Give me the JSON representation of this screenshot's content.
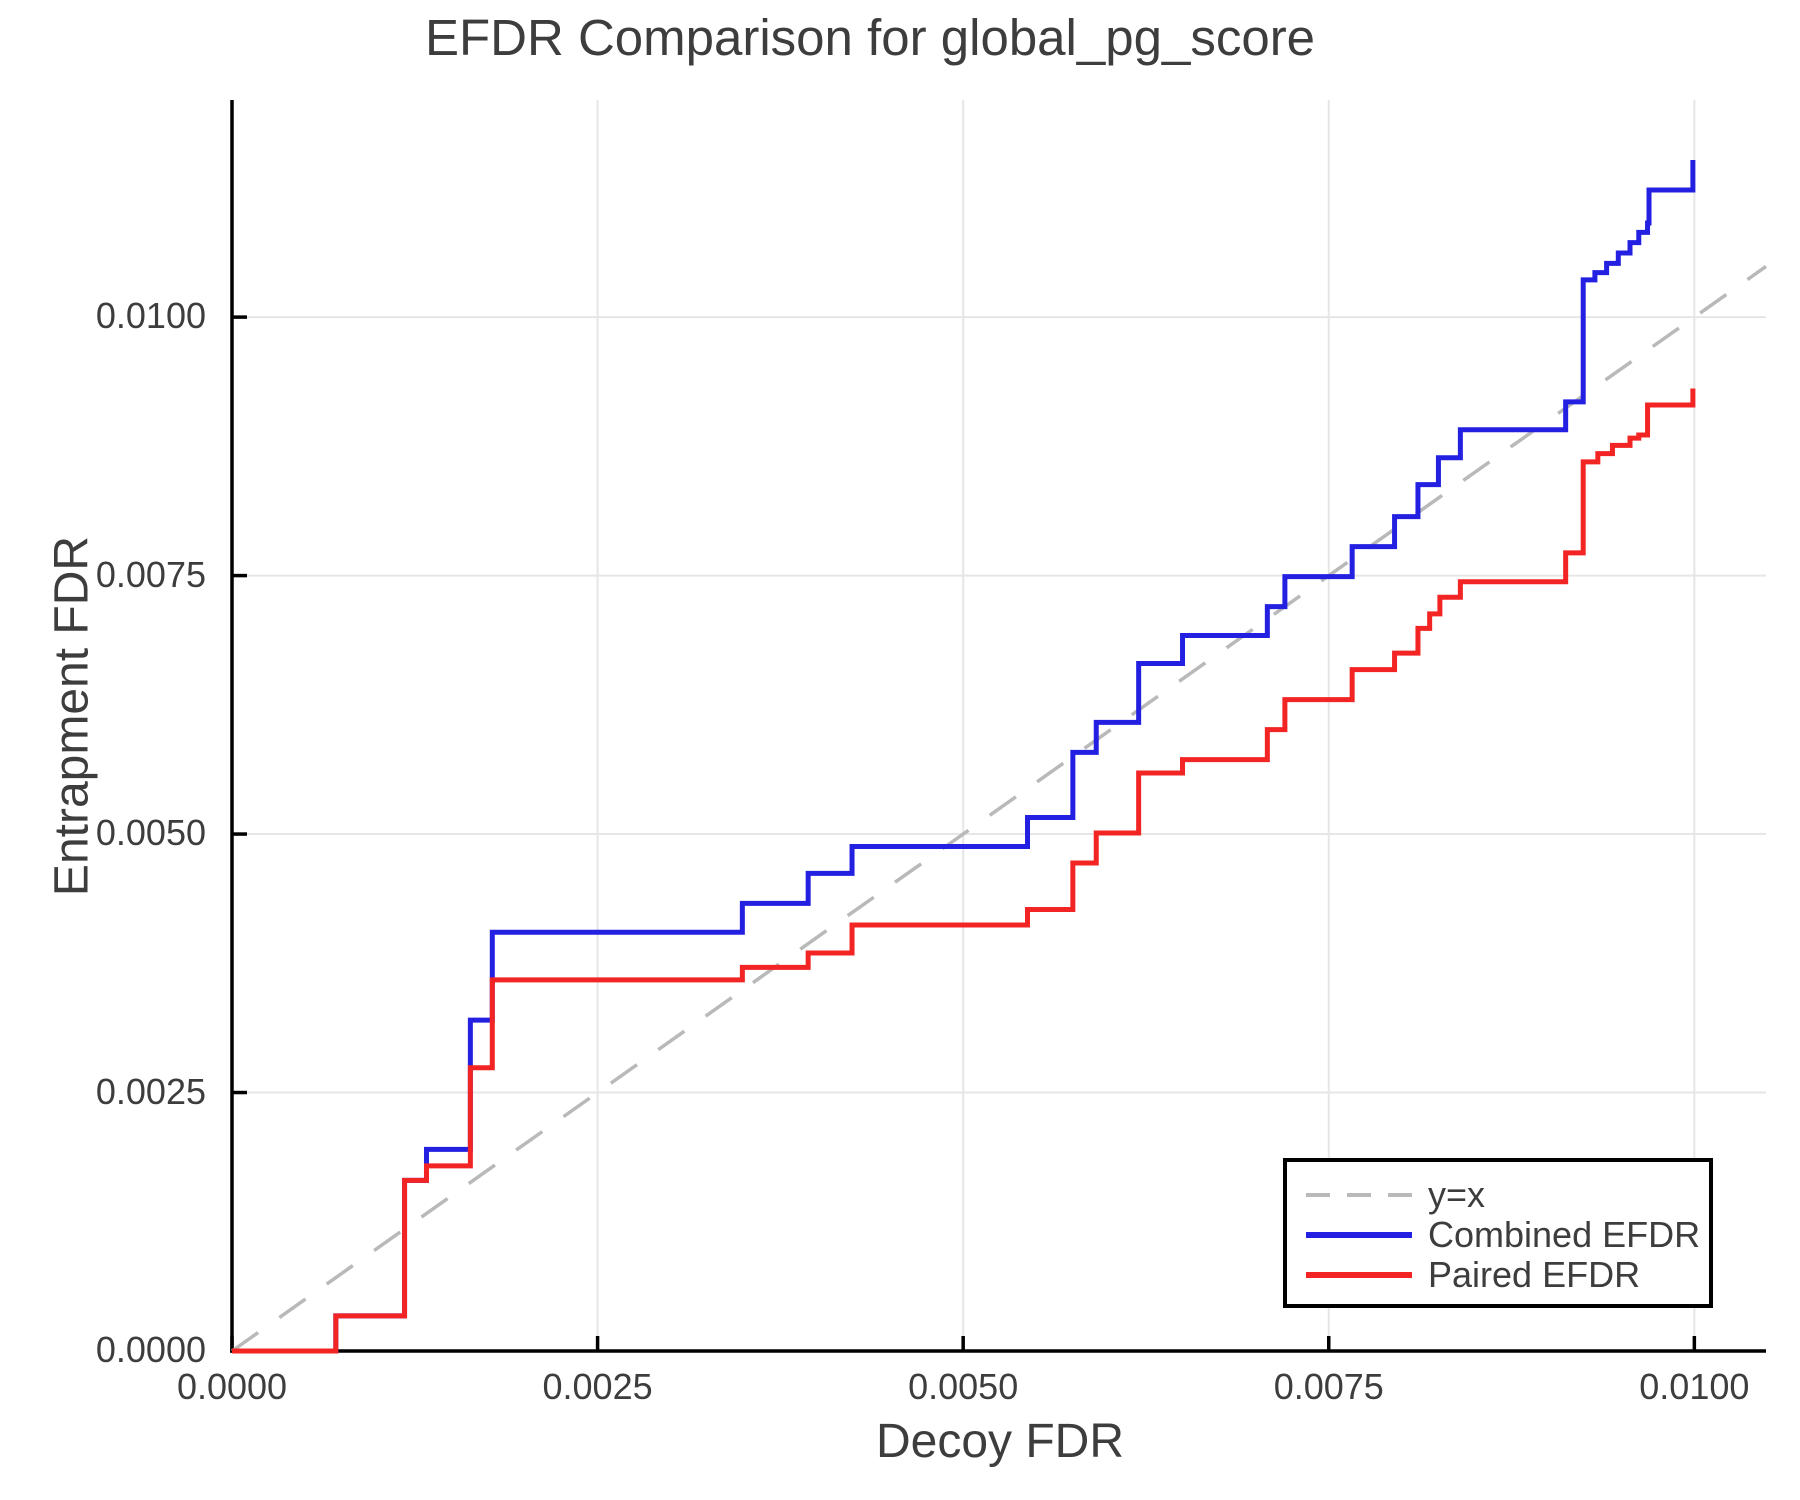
{
  "title": "EFDR Comparison for global_pg_score",
  "x_axis": {
    "label": "Decoy FDR",
    "tick_labels": [
      "0.0000",
      "0.0025",
      "0.0050",
      "0.0075",
      "0.0100"
    ],
    "tick_values": [
      0,
      0.0025,
      0.005,
      0.0075,
      0.01
    ]
  },
  "y_axis": {
    "label": "Entrapment FDR",
    "tick_labels": [
      "0.0000",
      "0.0025",
      "0.0050",
      "0.0075",
      "0.0100"
    ],
    "tick_values": [
      0,
      0.0025,
      0.005,
      0.0075,
      0.01
    ]
  },
  "legend": {
    "items": [
      {
        "label": "y=x"
      },
      {
        "label": "Combined EFDR"
      },
      {
        "label": "Paired EFDR"
      }
    ]
  },
  "colors": {
    "grid": "#e6e6e6",
    "axis": "#000000",
    "text": "#3d3d3d",
    "background": "#ffffff"
  },
  "chart_data": {
    "type": "line",
    "title": "EFDR Comparison for global_pg_score",
    "xlabel": "Decoy FDR",
    "ylabel": "Entrapment FDR",
    "xlim": [
      0,
      0.01049
    ],
    "ylim": [
      0,
      0.0121
    ],
    "grid": true,
    "legend_position": "lower right",
    "series": [
      {
        "name": "y=x",
        "style": "dashed",
        "color": "#b9b9b9",
        "x": [
          0,
          0.01049
        ],
        "y": [
          0,
          0.01049
        ]
      },
      {
        "name": "Combined EFDR",
        "style": "step-post",
        "color": "#2420e2",
        "x": [
          0,
          0.00071,
          0.00118,
          0.00133,
          0.00163,
          0.00178,
          0.00349,
          0.00394,
          0.00424,
          0.00544,
          0.00575,
          0.00591,
          0.0062,
          0.0065,
          0.00708,
          0.0072,
          0.00766,
          0.00795,
          0.00811,
          0.00825,
          0.0084,
          0.00912,
          0.00924,
          0.00932,
          0.0094,
          0.00948,
          0.00956,
          0.00962,
          0.00968,
          0.00969,
          0.00999
        ],
        "y": [
          0,
          0.00034,
          0.00165,
          0.00195,
          0.0032,
          0.00405,
          0.00433,
          0.00462,
          0.00488,
          0.00516,
          0.00579,
          0.00608,
          0.00665,
          0.00692,
          0.0072,
          0.00749,
          0.00778,
          0.00807,
          0.00838,
          0.00864,
          0.00891,
          0.00918,
          0.01036,
          0.01043,
          0.01052,
          0.01062,
          0.01072,
          0.01082,
          0.01091,
          0.01123,
          0.01152
        ]
      },
      {
        "name": "Paired EFDR",
        "style": "step-post",
        "color": "#f32424",
        "x": [
          0,
          0.00071,
          0.00118,
          0.00133,
          0.00163,
          0.00178,
          0.00349,
          0.00394,
          0.00424,
          0.00544,
          0.00575,
          0.00591,
          0.0062,
          0.0065,
          0.00708,
          0.0072,
          0.00766,
          0.00795,
          0.00811,
          0.00819,
          0.00826,
          0.0084,
          0.00912,
          0.00924,
          0.00934,
          0.00944,
          0.00956,
          0.00962,
          0.00968,
          0.00999
        ],
        "y": [
          0,
          0.00034,
          0.00165,
          0.00179,
          0.00274,
          0.00359,
          0.00371,
          0.00385,
          0.00412,
          0.00427,
          0.00472,
          0.00501,
          0.00559,
          0.00572,
          0.00601,
          0.0063,
          0.00659,
          0.00675,
          0.00699,
          0.00713,
          0.00729,
          0.00744,
          0.00772,
          0.0086,
          0.00868,
          0.00876,
          0.00883,
          0.00886,
          0.00915,
          0.00931
        ]
      }
    ]
  }
}
